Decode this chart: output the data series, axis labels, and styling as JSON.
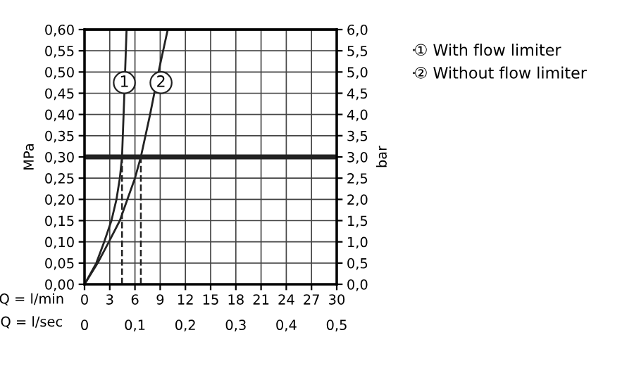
{
  "chart_data": {
    "type": "line",
    "ylabel": "MPa",
    "y2label": "bar",
    "xlabel": "Q = l/min",
    "x2label": "Q = l/sec",
    "series": [
      {
        "name": "① With flow limiter",
        "color": "#222222",
        "x": [
          0,
          1.4,
          2.34,
          3.2,
          3.8,
          4.2,
          4.46,
          4.74,
          5.0
        ],
        "values": [
          0,
          0.05,
          0.1,
          0.15,
          0.2,
          0.25,
          0.3,
          0.45,
          0.6
        ]
      },
      {
        "name": "② Without flow limiter",
        "color": "#222222",
        "x": [
          0,
          1.56,
          2.9,
          4.2,
          5.1,
          6.0,
          6.7,
          7.8,
          8.8,
          9.9
        ],
        "values": [
          0,
          0.05,
          0.1,
          0.15,
          0.2,
          0.25,
          0.3,
          0.4,
          0.5,
          0.6
        ]
      },
      {
        "color": "#222222",
        "line_style": "dashed",
        "x": [
          4.46,
          4.46
        ],
        "values": [
          0,
          0.3
        ]
      },
      {
        "color": "#222222",
        "line_style": "dashed",
        "x": [
          6.7,
          6.7
        ],
        "values": [
          0,
          0.3
        ]
      }
    ],
    "ref_lines": [
      {
        "axis": "y",
        "value": 0.3,
        "color": "#222222"
      }
    ],
    "annotations": [
      {
        "text": "1",
        "x": 4.74,
        "y": 0.475
      },
      {
        "text": "2",
        "x": 9.1,
        "y": 0.475
      }
    ],
    "xlim": [
      0,
      30
    ],
    "xticks": [
      0,
      3,
      6,
      9,
      12,
      15,
      18,
      21,
      24,
      27,
      30
    ],
    "x2lim": [
      0,
      0.5
    ],
    "x2ticks": [
      0,
      {
        "value": 0.1,
        "label": "0,1"
      },
      {
        "value": 0.2,
        "label": "0,2"
      },
      {
        "value": 0.3,
        "label": "0,3"
      },
      {
        "value": 0.4,
        "label": "0,4"
      },
      {
        "value": 0.5,
        "label": "0,5"
      }
    ],
    "ylim": [
      0,
      0.6
    ],
    "yticks": [
      {
        "value": 0,
        "label": "0,00"
      },
      {
        "value": 0.05,
        "label": "0,05"
      },
      {
        "value": 0.1,
        "label": "0,10"
      },
      {
        "value": 0.15,
        "label": "0,15"
      },
      {
        "value": 0.2,
        "label": "0,20"
      },
      {
        "value": 0.25,
        "label": "0,25"
      },
      {
        "value": 0.3,
        "label": "0,30"
      },
      {
        "value": 0.35,
        "label": "0,35"
      },
      {
        "value": 0.4,
        "label": "0,40"
      },
      {
        "value": 0.45,
        "label": "0,45"
      },
      {
        "value": 0.5,
        "label": "0,50"
      },
      {
        "value": 0.55,
        "label": "0,55"
      },
      {
        "value": 0.6,
        "label": "0,60"
      }
    ],
    "y2lim": [
      0,
      6
    ],
    "y2ticks": [
      {
        "value": 0,
        "label": "0,0"
      },
      {
        "value": 0.5,
        "label": "0,5"
      },
      {
        "value": 1,
        "label": "1,0"
      },
      {
        "value": 1.5,
        "label": "1,5"
      },
      {
        "value": 2,
        "label": "2,0"
      },
      {
        "value": 2.5,
        "label": "2,5"
      },
      {
        "value": 3,
        "label": "3,0"
      },
      {
        "value": 3.5,
        "label": "3,5"
      },
      {
        "value": 4,
        "label": "4,0"
      },
      {
        "value": 4.5,
        "label": "4,5"
      },
      {
        "value": 5,
        "label": "5,0"
      },
      {
        "value": 5.5,
        "label": "5,5"
      },
      {
        "value": 6,
        "label": "6,0"
      }
    ],
    "grid": true,
    "legend": "top right",
    "marker": "none",
    "line_style": "solid"
  }
}
